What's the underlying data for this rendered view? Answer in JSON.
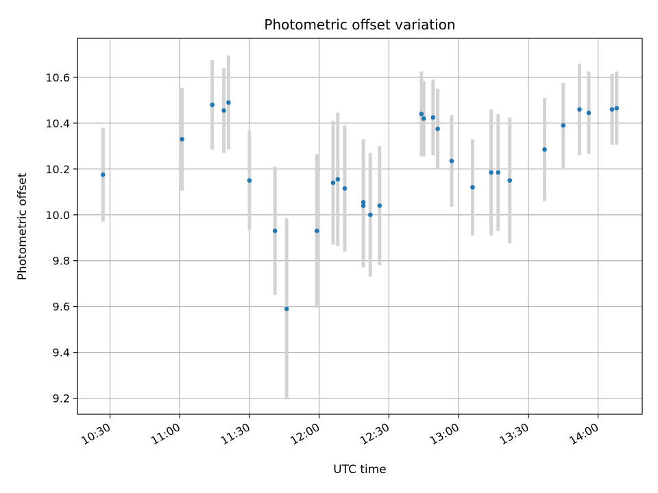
{
  "chart_data": {
    "type": "scatter",
    "title": "Photometric offset variation",
    "xlabel": "UTC time",
    "ylabel": "Photometric offset",
    "xlim": [
      "10:16",
      "14:19"
    ],
    "ylim": [
      9.13,
      10.77
    ],
    "grid": true,
    "x_ticks": [
      "10:30",
      "11:00",
      "11:30",
      "12:00",
      "12:30",
      "13:00",
      "13:30",
      "14:00"
    ],
    "y_ticks": [
      9.2,
      9.4,
      9.6,
      9.8,
      10.0,
      10.2,
      10.4,
      10.6
    ],
    "y_tick_labels": [
      "9.2",
      "9.4",
      "9.6",
      "9.8",
      "10.0",
      "10.2",
      "10.4",
      "10.6"
    ],
    "colors": {
      "point": "#1f77b4",
      "errorbar": "#d3d3d3",
      "grid": "#b0b0b0"
    },
    "points": [
      {
        "x": "10:27",
        "y": 10.175,
        "err": 0.205
      },
      {
        "x": "11:01",
        "y": 10.33,
        "err": 0.225
      },
      {
        "x": "11:14",
        "y": 10.48,
        "err": 0.195
      },
      {
        "x": "11:19",
        "y": 10.455,
        "err": 0.185
      },
      {
        "x": "11:21",
        "y": 10.49,
        "err": 0.205
      },
      {
        "x": "11:30",
        "y": 10.15,
        "err": 0.215
      },
      {
        "x": "11:41",
        "y": 9.93,
        "err": 0.28
      },
      {
        "x": "11:46",
        "y": 9.59,
        "err": 0.395
      },
      {
        "x": "11:59",
        "y": 9.93,
        "err": 0.335
      },
      {
        "x": "12:06",
        "y": 10.14,
        "err": 0.27
      },
      {
        "x": "12:08",
        "y": 10.155,
        "err": 0.29
      },
      {
        "x": "12:11",
        "y": 10.115,
        "err": 0.275
      },
      {
        "x": "12:19",
        "y": 10.04,
        "err": 0.27
      },
      {
        "x": "12:19",
        "y": 10.055,
        "err": 0.275
      },
      {
        "x": "12:22",
        "y": 10.0,
        "err": 0.27
      },
      {
        "x": "12:26",
        "y": 10.04,
        "err": 0.26
      },
      {
        "x": "12:44",
        "y": 10.44,
        "err": 0.185
      },
      {
        "x": "12:45",
        "y": 10.42,
        "err": 0.165
      },
      {
        "x": "12:49",
        "y": 10.425,
        "err": 0.165
      },
      {
        "x": "12:51",
        "y": 10.375,
        "err": 0.175
      },
      {
        "x": "12:57",
        "y": 10.235,
        "err": 0.2
      },
      {
        "x": "13:06",
        "y": 10.12,
        "err": 0.21
      },
      {
        "x": "13:14",
        "y": 10.185,
        "err": 0.275
      },
      {
        "x": "13:17",
        "y": 10.185,
        "err": 0.255
      },
      {
        "x": "13:22",
        "y": 10.15,
        "err": 0.275
      },
      {
        "x": "13:37",
        "y": 10.285,
        "err": 0.225
      },
      {
        "x": "13:45",
        "y": 10.39,
        "err": 0.185
      },
      {
        "x": "13:52",
        "y": 10.46,
        "err": 0.2
      },
      {
        "x": "13:56",
        "y": 10.445,
        "err": 0.18
      },
      {
        "x": "14:06",
        "y": 10.46,
        "err": 0.155
      },
      {
        "x": "14:08",
        "y": 10.465,
        "err": 0.16
      }
    ]
  }
}
